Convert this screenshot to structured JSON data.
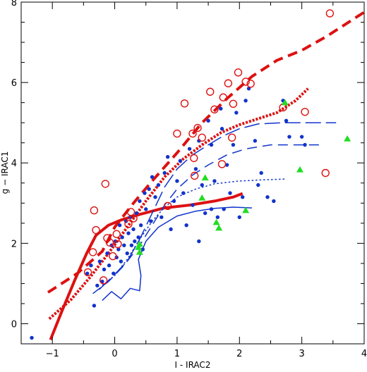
{
  "chart_data": {
    "type": "scatter",
    "title": "",
    "xlabel": "I - IRAC2",
    "ylabel": "g − IRAC1",
    "xlim": [
      -1.5,
      4.0
    ],
    "ylim": [
      -0.5,
      8.0
    ],
    "xticks": [
      -1,
      0,
      1,
      2,
      3,
      4
    ],
    "yticks": [
      0,
      2,
      4,
      6,
      8
    ],
    "grid": false,
    "legend": "none",
    "colors": {
      "blue": "#1133cc",
      "red": "#dd1111",
      "green": "#22dd22"
    },
    "series": [
      {
        "marker": "dot",
        "color": "#1133cc",
        "points": [
          [
            -1.33,
            -0.35
          ],
          [
            -0.44,
            1.25
          ],
          [
            -0.38,
            1.45
          ],
          [
            -0.33,
            0.45
          ],
          [
            -0.28,
            0.95
          ],
          [
            -0.24,
            1.55
          ],
          [
            -0.2,
            1.05
          ],
          [
            -0.17,
            1.35
          ],
          [
            -0.12,
            1.75
          ],
          [
            -0.09,
            1.45
          ],
          [
            -0.05,
            1.95
          ],
          [
            -0.02,
            1.25
          ],
          [
            0.01,
            2.05
          ],
          [
            0.03,
            1.65
          ],
          [
            0.06,
            1.85
          ],
          [
            0.08,
            2.45
          ],
          [
            0.1,
            1.55
          ],
          [
            0.12,
            2.15
          ],
          [
            0.15,
            1.95
          ],
          [
            0.18,
            2.55
          ],
          [
            0.2,
            1.75
          ],
          [
            0.22,
            2.25
          ],
          [
            0.25,
            2.65
          ],
          [
            0.27,
            1.95
          ],
          [
            0.3,
            2.35
          ],
          [
            0.32,
            2.05
          ],
          [
            0.35,
            2.75
          ],
          [
            0.38,
            2.15
          ],
          [
            0.4,
            3.05
          ],
          [
            0.42,
            2.45
          ],
          [
            0.45,
            1.85
          ],
          [
            0.48,
            3.25
          ],
          [
            0.5,
            2.85
          ],
          [
            0.55,
            3.35
          ],
          [
            0.58,
            2.55
          ],
          [
            0.6,
            3.65
          ],
          [
            0.65,
            3.15
          ],
          [
            0.7,
            3.45
          ],
          [
            0.75,
            2.65
          ],
          [
            0.8,
            3.75
          ],
          [
            0.85,
            4.15
          ],
          [
            0.9,
            2.35
          ],
          [
            0.95,
            3.05
          ],
          [
            1.0,
            3.55
          ],
          [
            1.05,
            4.05
          ],
          [
            1.1,
            3.25
          ],
          [
            1.15,
            2.45
          ],
          [
            1.2,
            4.35
          ],
          [
            1.25,
            2.95
          ],
          [
            1.3,
            3.85
          ],
          [
            1.35,
            4.55
          ],
          [
            1.4,
            3.45
          ],
          [
            1.45,
            2.75
          ],
          [
            1.5,
            5.05
          ],
          [
            1.55,
            4.45
          ],
          [
            1.6,
            3.55
          ],
          [
            1.65,
            2.65
          ],
          [
            1.7,
            5.35
          ],
          [
            1.72,
            4.85
          ],
          [
            1.75,
            2.85
          ],
          [
            1.8,
            3.95
          ],
          [
            1.85,
            3.25
          ],
          [
            1.9,
            4.45
          ],
          [
            1.95,
            5.25
          ],
          [
            2.0,
            2.65
          ],
          [
            2.05,
            3.15
          ],
          [
            2.1,
            5.55
          ],
          [
            2.15,
            5.85
          ],
          [
            2.25,
            4.55
          ],
          [
            2.3,
            3.45
          ],
          [
            2.35,
            3.75
          ],
          [
            2.45,
            3.15
          ],
          [
            2.55,
            3.05
          ],
          [
            2.7,
            5.55
          ],
          [
            2.75,
            5.05
          ],
          [
            2.8,
            4.65
          ],
          [
            3.0,
            4.65
          ],
          [
            3.05,
            4.45
          ],
          [
            1.35,
            2.05
          ],
          [
            1.55,
            2.85
          ]
        ]
      },
      {
        "marker": "open-circle",
        "color": "#dd1111",
        "points": [
          [
            -0.43,
            1.28
          ],
          [
            -0.35,
            1.78
          ],
          [
            -0.33,
            2.82
          ],
          [
            -0.3,
            2.33
          ],
          [
            -0.18,
            1.08
          ],
          [
            -0.15,
            3.48
          ],
          [
            -0.12,
            2.13
          ],
          [
            -0.08,
            2.02
          ],
          [
            -0.03,
            1.68
          ],
          [
            0.03,
            2.23
          ],
          [
            0.05,
            1.98
          ],
          [
            0.22,
            2.48
          ],
          [
            0.26,
            2.78
          ],
          [
            0.3,
            2.62
          ],
          [
            0.85,
            2.93
          ],
          [
            1.0,
            4.73
          ],
          [
            1.12,
            5.48
          ],
          [
            1.25,
            4.73
          ],
          [
            1.27,
            4.12
          ],
          [
            1.28,
            3.68
          ],
          [
            1.33,
            4.87
          ],
          [
            1.4,
            4.63
          ],
          [
            1.53,
            5.77
          ],
          [
            1.6,
            5.33
          ],
          [
            1.72,
            3.97
          ],
          [
            1.74,
            5.63
          ],
          [
            1.82,
            5.98
          ],
          [
            1.88,
            4.63
          ],
          [
            1.9,
            5.47
          ],
          [
            1.98,
            6.25
          ],
          [
            2.1,
            6.02
          ],
          [
            2.18,
            5.97
          ],
          [
            2.7,
            5.38
          ],
          [
            3.05,
            5.27
          ],
          [
            3.38,
            3.75
          ],
          [
            3.45,
            7.72
          ]
        ]
      },
      {
        "marker": "triangle",
        "color": "#22dd22",
        "points": [
          [
            0.38,
            1.9
          ],
          [
            0.4,
            1.78
          ],
          [
            0.4,
            1.98
          ],
          [
            1.45,
            3.63
          ],
          [
            1.4,
            3.13
          ],
          [
            1.63,
            2.52
          ],
          [
            1.67,
            2.38
          ],
          [
            2.1,
            2.82
          ],
          [
            2.73,
            5.5
          ],
          [
            2.97,
            3.83
          ],
          [
            3.73,
            4.6
          ]
        ]
      }
    ],
    "lines": [
      {
        "color": "#dd1111",
        "style": "dashed",
        "width": 4,
        "points": [
          [
            -1.07,
            0.78
          ],
          [
            -0.6,
            1.25
          ],
          [
            -0.2,
            1.8
          ],
          [
            0.0,
            2.4
          ],
          [
            0.3,
            3.0
          ],
          [
            0.6,
            3.55
          ],
          [
            1.0,
            4.25
          ],
          [
            1.4,
            5.0
          ],
          [
            1.8,
            5.6
          ],
          [
            2.2,
            6.15
          ],
          [
            2.6,
            6.55
          ],
          [
            3.0,
            6.8
          ],
          [
            3.4,
            7.15
          ],
          [
            3.8,
            7.55
          ],
          [
            4.0,
            7.75
          ]
        ]
      },
      {
        "color": "#dd1111",
        "style": "dotted",
        "width": 4,
        "points": [
          [
            -1.05,
            0.12
          ],
          [
            -0.7,
            0.6
          ],
          [
            -0.4,
            1.15
          ],
          [
            -0.1,
            1.75
          ],
          [
            0.2,
            2.4
          ],
          [
            0.5,
            3.05
          ],
          [
            0.8,
            3.65
          ],
          [
            1.1,
            4.1
          ],
          [
            1.4,
            4.45
          ],
          [
            1.7,
            4.75
          ],
          [
            2.0,
            4.95
          ],
          [
            2.3,
            5.1
          ],
          [
            2.6,
            5.25
          ],
          [
            2.9,
            5.55
          ],
          [
            3.1,
            5.85
          ]
        ]
      },
      {
        "color": "#dd1111",
        "style": "solid",
        "width": 4,
        "points": [
          [
            -1.03,
            -0.4
          ],
          [
            -0.85,
            0.3
          ],
          [
            -0.65,
            1.05
          ],
          [
            -0.45,
            1.75
          ],
          [
            -0.3,
            2.2
          ],
          [
            -0.1,
            2.45
          ],
          [
            0.1,
            2.58
          ],
          [
            0.4,
            2.72
          ],
          [
            0.8,
            2.88
          ],
          [
            1.2,
            2.95
          ],
          [
            1.6,
            3.05
          ],
          [
            1.9,
            3.15
          ],
          [
            2.05,
            3.24
          ]
        ]
      },
      {
        "color": "#1133cc",
        "style": "long-dash",
        "width": 1.5,
        "points": [
          [
            -0.25,
            0.85
          ],
          [
            -0.05,
            1.15
          ],
          [
            0.2,
            1.55
          ],
          [
            0.4,
            2.1
          ],
          [
            0.6,
            2.75
          ],
          [
            0.8,
            3.4
          ],
          [
            1.0,
            3.85
          ],
          [
            1.25,
            4.2
          ],
          [
            1.5,
            4.45
          ],
          [
            1.75,
            4.68
          ],
          [
            2.0,
            4.85
          ],
          [
            2.3,
            4.97
          ],
          [
            2.7,
            5.0
          ],
          [
            3.2,
            5.0
          ],
          [
            3.55,
            5.0
          ]
        ]
      },
      {
        "color": "#1133cc",
        "style": "dashed",
        "width": 1.5,
        "points": [
          [
            -0.35,
            0.75
          ],
          [
            -0.1,
            1.05
          ],
          [
            0.15,
            1.45
          ],
          [
            0.4,
            1.95
          ],
          [
            0.6,
            2.45
          ],
          [
            0.8,
            2.95
          ],
          [
            1.0,
            3.35
          ],
          [
            1.25,
            3.7
          ],
          [
            1.5,
            3.95
          ],
          [
            1.8,
            4.2
          ],
          [
            2.1,
            4.35
          ],
          [
            2.5,
            4.45
          ],
          [
            3.0,
            4.45
          ],
          [
            3.35,
            4.45
          ]
        ]
      },
      {
        "color": "#1133cc",
        "style": "dotted",
        "width": 1.5,
        "points": [
          [
            -0.2,
            0.95
          ],
          [
            0.0,
            1.2
          ],
          [
            0.2,
            1.6
          ],
          [
            0.4,
            2.1
          ],
          [
            0.6,
            2.55
          ],
          [
            0.8,
            2.9
          ],
          [
            1.0,
            3.15
          ],
          [
            1.3,
            3.35
          ],
          [
            1.6,
            3.48
          ],
          [
            2.0,
            3.55
          ],
          [
            2.4,
            3.58
          ],
          [
            2.75,
            3.6
          ]
        ]
      },
      {
        "color": "#1133cc",
        "style": "solid",
        "width": 1.5,
        "points": [
          [
            -0.2,
            0.58
          ],
          [
            -0.05,
            0.8
          ],
          [
            0.1,
            0.62
          ],
          [
            0.25,
            0.88
          ],
          [
            0.4,
            0.82
          ],
          [
            0.42,
            1.2
          ],
          [
            0.38,
            1.6
          ],
          [
            0.5,
            2.05
          ],
          [
            0.7,
            2.4
          ],
          [
            1.0,
            2.68
          ],
          [
            1.3,
            2.8
          ],
          [
            1.6,
            2.87
          ],
          [
            1.9,
            2.9
          ],
          [
            2.2,
            2.88
          ]
        ]
      }
    ]
  }
}
